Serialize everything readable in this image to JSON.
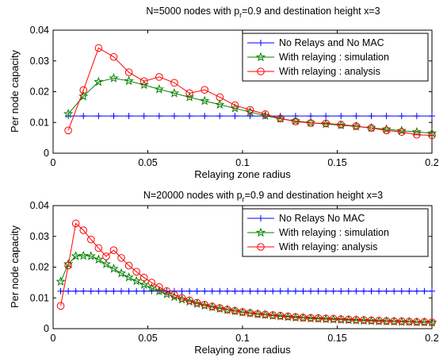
{
  "colors": {
    "series_no_relays": "#0000ff",
    "series_simulation": "#008000",
    "series_analysis": "#ff0000"
  },
  "chart_data": [
    {
      "type": "line",
      "title_main": "N=5000 nodes with p",
      "title_sub": "r",
      "title_rest": "=0.9 and destination height x=3",
      "xlabel": "Relaying zone radius",
      "ylabel": "Per node capacity",
      "xlim": [
        0,
        0.2
      ],
      "ylim": [
        0,
        0.04
      ],
      "xticks": [
        0,
        0.05,
        0.1,
        0.15,
        0.2
      ],
      "xtick_labels": [
        "0",
        "0.05",
        "0.1",
        "0.15",
        "0.2"
      ],
      "yticks": [
        0,
        0.01,
        0.02,
        0.03,
        0.04
      ],
      "ytick_labels": [
        "0",
        "0.01",
        "0.02",
        "0.03",
        "0.04"
      ],
      "grid": false,
      "legend_position": "top-right",
      "x": [
        0.008,
        0.016,
        0.024,
        0.032,
        0.04,
        0.048,
        0.056,
        0.064,
        0.072,
        0.08,
        0.088,
        0.096,
        0.104,
        0.112,
        0.12,
        0.128,
        0.136,
        0.144,
        0.152,
        0.16,
        0.168,
        0.176,
        0.184,
        0.192,
        0.2
      ],
      "series": [
        {
          "name": "No Relays and No MAC",
          "marker": "plus",
          "color": "#0000ff",
          "values": [
            0.0121,
            0.0121,
            0.0121,
            0.0121,
            0.0121,
            0.0121,
            0.0121,
            0.0121,
            0.0121,
            0.0121,
            0.0121,
            0.0121,
            0.0121,
            0.0121,
            0.0121,
            0.0121,
            0.0121,
            0.0121,
            0.0121,
            0.0121,
            0.0121,
            0.0121,
            0.0121,
            0.0121,
            0.0121
          ]
        },
        {
          "name": "With relaying : simulation",
          "marker": "star",
          "color": "#008000",
          "values": [
            0.0128,
            0.0185,
            0.0232,
            0.0244,
            0.0235,
            0.0222,
            0.0208,
            0.0195,
            0.0182,
            0.017,
            0.0158,
            0.0146,
            0.0134,
            0.0122,
            0.0112,
            0.0105,
            0.0099,
            0.0095,
            0.0091,
            0.0087,
            0.0082,
            0.0078,
            0.0073,
            0.0069,
            0.0065
          ]
        },
        {
          "name": "With relaying : analysis",
          "marker": "circle",
          "color": "#ff0000",
          "values": [
            0.0074,
            0.0205,
            0.0342,
            0.0313,
            0.0263,
            0.0234,
            0.0248,
            0.0229,
            0.0195,
            0.0206,
            0.0182,
            0.0156,
            0.0141,
            0.0127,
            0.0113,
            0.0103,
            0.0098,
            0.0097,
            0.0093,
            0.0088,
            0.0082,
            0.0074,
            0.0069,
            0.006,
            0.0058
          ]
        }
      ]
    },
    {
      "type": "line",
      "title_main": "N=20000 nodes with p",
      "title_sub": "r",
      "title_rest": "=0.9 and destination height x=3",
      "xlabel": "Relaying zone radius",
      "ylabel": "Per node capacity",
      "xlim": [
        0,
        0.2
      ],
      "ylim": [
        0,
        0.04
      ],
      "xticks": [
        0,
        0.05,
        0.1,
        0.15,
        0.2
      ],
      "xtick_labels": [
        "0",
        "0.05",
        "0.1",
        "0.15",
        "0.2"
      ],
      "yticks": [
        0,
        0.01,
        0.02,
        0.03,
        0.04
      ],
      "ytick_labels": [
        "0",
        "0.01",
        "0.02",
        "0.03",
        "0.04"
      ],
      "grid": false,
      "legend_position": "top-right",
      "x": [
        0.004,
        0.008,
        0.012,
        0.016,
        0.02,
        0.024,
        0.028,
        0.032,
        0.036,
        0.04,
        0.044,
        0.048,
        0.052,
        0.056,
        0.06,
        0.064,
        0.068,
        0.072,
        0.076,
        0.08,
        0.084,
        0.088,
        0.092,
        0.096,
        0.1,
        0.104,
        0.108,
        0.112,
        0.116,
        0.12,
        0.124,
        0.128,
        0.132,
        0.136,
        0.14,
        0.144,
        0.148,
        0.152,
        0.156,
        0.16,
        0.164,
        0.168,
        0.172,
        0.176,
        0.18,
        0.184,
        0.188,
        0.192,
        0.196,
        0.2
      ],
      "series": [
        {
          "name": "No Relays No MAC",
          "marker": "plus",
          "color": "#0000ff",
          "values": [
            0.0122,
            0.0122,
            0.0122,
            0.0122,
            0.0122,
            0.0122,
            0.0122,
            0.0122,
            0.0122,
            0.0122,
            0.0122,
            0.0122,
            0.0122,
            0.0122,
            0.0122,
            0.0122,
            0.0122,
            0.0122,
            0.0122,
            0.0122,
            0.0122,
            0.0122,
            0.0122,
            0.0122,
            0.0122,
            0.0122,
            0.0122,
            0.0122,
            0.0122,
            0.0122,
            0.0122,
            0.0122,
            0.0122,
            0.0122,
            0.0122,
            0.0122,
            0.0122,
            0.0122,
            0.0122,
            0.0122,
            0.0122,
            0.0122,
            0.0122,
            0.0122,
            0.0122,
            0.0122,
            0.0122,
            0.0122,
            0.0122,
            0.0122
          ]
        },
        {
          "name": "With relaying : simulation",
          "marker": "star",
          "color": "#008000",
          "values": [
            0.0153,
            0.021,
            0.0236,
            0.0237,
            0.0236,
            0.0225,
            0.021,
            0.0195,
            0.018,
            0.0167,
            0.0155,
            0.0143,
            0.0132,
            0.0122,
            0.0112,
            0.0103,
            0.0095,
            0.0088,
            0.0081,
            0.0075,
            0.007,
            0.0065,
            0.0061,
            0.0057,
            0.0053,
            0.005,
            0.0047,
            0.0045,
            0.0042,
            0.004,
            0.0038,
            0.0036,
            0.0035,
            0.0033,
            0.0032,
            0.0031,
            0.003,
            0.0029,
            0.0028,
            0.0027,
            0.0026,
            0.0025,
            0.0024,
            0.0024,
            0.0023,
            0.0022,
            0.0022,
            0.0021,
            0.0021,
            0.002
          ]
        },
        {
          "name": "With relaying: analysis",
          "marker": "circle",
          "color": "#ff0000",
          "values": [
            0.0074,
            0.0205,
            0.0342,
            0.032,
            0.029,
            0.0262,
            0.0235,
            0.0255,
            0.023,
            0.0205,
            0.0185,
            0.0166,
            0.015,
            0.0135,
            0.0122,
            0.011,
            0.01,
            0.0092,
            0.0084,
            0.0078,
            0.0072,
            0.0067,
            0.0062,
            0.0058,
            0.0054,
            0.0051,
            0.0048,
            0.0046,
            0.0044,
            0.0042,
            0.004,
            0.0038,
            0.0036,
            0.0035,
            0.0034,
            0.0033,
            0.0032,
            0.0031,
            0.003,
            0.0029,
            0.0028,
            0.0027,
            0.0026,
            0.0025,
            0.0024,
            0.0024,
            0.0023,
            0.0022,
            0.0022,
            0.0021
          ]
        }
      ]
    }
  ]
}
